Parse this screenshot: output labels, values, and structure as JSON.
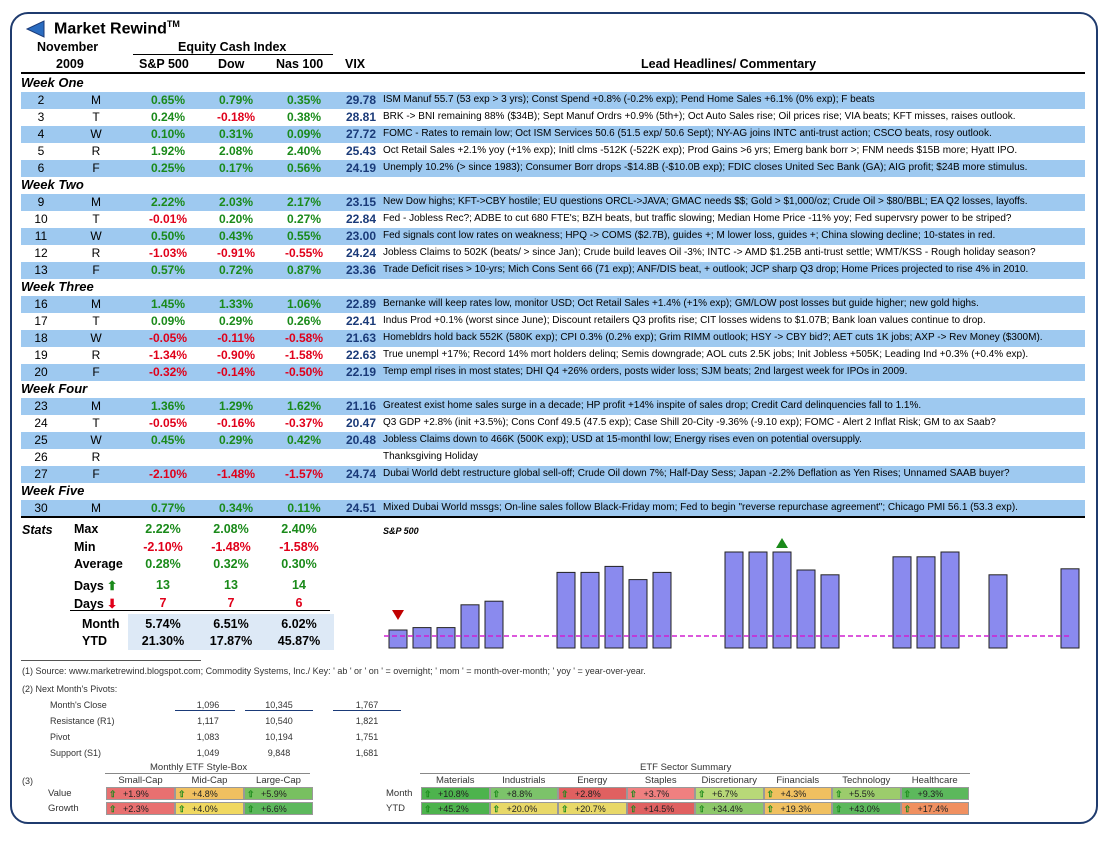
{
  "app": {
    "title": "Market Rewind",
    "tm": "TM"
  },
  "header": {
    "month": "November",
    "year": "2009",
    "group": "Equity Cash Index",
    "cols": [
      "S&P 500",
      "Dow",
      "Nas 100",
      "VIX",
      "Lead Headlines/ Commentary"
    ]
  },
  "weeks": [
    "Week One",
    "Week Two",
    "Week Three",
    "Week Four",
    "Week Five"
  ],
  "rows": [
    {
      "d": "2",
      "w": "M",
      "sp": "0.65%",
      "dow": "0.79%",
      "nas": "0.35%",
      "vix": "29.78",
      "h": "ISM Manuf 55.7 (53 exp > 3 yrs); Const Spend +0.8% (-0.2% exp); Pend Home Sales +6.1% (0% exp); F beats"
    },
    {
      "d": "3",
      "w": "T",
      "sp": "0.24%",
      "dow": "-0.18%",
      "nas": "0.38%",
      "vix": "28.81",
      "h": "BRK -> BNI remaining 88% ($34B); Sept Manuf Ordrs +0.9% (5th+); Oct Auto Sales rise; Oil prices rise; VIA beats; KFT misses, raises outlook."
    },
    {
      "d": "4",
      "w": "W",
      "sp": "0.10%",
      "dow": "0.31%",
      "nas": "0.09%",
      "vix": "27.72",
      "h": "FOMC - Rates to remain low; Oct ISM Services 50.6 (51.5 exp/ 50.6 Sept); NY-AG joins INTC anti-trust action; CSCO beats, rosy outlook."
    },
    {
      "d": "5",
      "w": "R",
      "sp": "1.92%",
      "dow": "2.08%",
      "nas": "2.40%",
      "vix": "25.43",
      "h": "Oct Retail Sales +2.1% yoy (+1% exp); Initl clms -512K (-522K exp); Prod Gains >6 yrs;  Emerg bank borr >; FNM needs $15B more; Hyatt IPO."
    },
    {
      "d": "6",
      "w": "F",
      "sp": "0.25%",
      "dow": "0.17%",
      "nas": "0.56%",
      "vix": "24.19",
      "h": "Unemply 10.2% (> since 1983); Consumer Borr drops -$14.8B (-$10.0B exp); FDIC closes United Sec Bank (GA); AIG profit; $24B more stimulus."
    },
    {
      "d": "9",
      "w": "M",
      "sp": "2.22%",
      "dow": "2.03%",
      "nas": "2.17%",
      "vix": "23.15",
      "h": "New Dow highs; KFT->CBY hostile; EU questions ORCL->JAVA; GMAC needs $$; Gold > $1,000/oz; Crude Oil > $80/BBL; EA Q2 losses, layoffs."
    },
    {
      "d": "10",
      "w": "T",
      "sp": "-0.01%",
      "dow": "0.20%",
      "nas": "0.27%",
      "vix": "22.84",
      "h": "Fed - Jobless Rec?; ADBE to cut 680 FTE's; BZH beats, but traffic slowing; Median Home Price -11% yoy; Fed supervsry power to be striped?"
    },
    {
      "d": "11",
      "w": "W",
      "sp": "0.50%",
      "dow": "0.43%",
      "nas": "0.55%",
      "vix": "23.00",
      "h": "Fed signals cont low rates on weakness; HPQ -> COMS ($2.7B), guides +; M lower loss, guides +; China slowing decline; 10-states in red."
    },
    {
      "d": "12",
      "w": "R",
      "sp": "-1.03%",
      "dow": "-0.91%",
      "nas": "-0.55%",
      "vix": "24.24",
      "h": "Jobless Claims to 502K (beats/ > since Jan); Crude build leaves Oil -3%; INTC -> AMD $1.25B anti-trust settle; WMT/KSS - Rough holiday season?"
    },
    {
      "d": "13",
      "w": "F",
      "sp": "0.57%",
      "dow": "0.72%",
      "nas": "0.87%",
      "vix": "23.36",
      "h": "Trade Deficit rises > 10-yrs; Mich Cons Sent 66 (71 exp); ANF/DIS beat, + outlook; JCP sharp Q3 drop; Home Prices projected to rise 4% in 2010."
    },
    {
      "d": "16",
      "w": "M",
      "sp": "1.45%",
      "dow": "1.33%",
      "nas": "1.06%",
      "vix": "22.89",
      "h": "Bernanke will keep rates low, monitor USD; Oct Retail Sales +1.4% (+1% exp); GM/LOW post losses but guide higher; new gold highs."
    },
    {
      "d": "17",
      "w": "T",
      "sp": "0.09%",
      "dow": "0.29%",
      "nas": "0.26%",
      "vix": "22.41",
      "h": "Indus Prod +0.1% (worst since June); Discount retailers Q3 profits rise; CIT losses widens to $1.07B; Bank loan values continue to drop."
    },
    {
      "d": "18",
      "w": "W",
      "sp": "-0.05%",
      "dow": "-0.11%",
      "nas": "-0.58%",
      "vix": "21.63",
      "h": "Homebldrs hold back 552K (580K exp); CPI 0.3% (0.2% exp); Grim RIMM outlook; HSY -> CBY bid?; AET cuts 1K jobs; AXP -> Rev Money ($300M)."
    },
    {
      "d": "19",
      "w": "R",
      "sp": "-1.34%",
      "dow": "-0.90%",
      "nas": "-1.58%",
      "vix": "22.63",
      "h": "True unempl +17%; Record 14% mort holders delinq; Semis downgrade; AOL cuts 2.5K jobs; Init Jobless +505K; Leading Ind +0.3% (+0.4% exp)."
    },
    {
      "d": "20",
      "w": "F",
      "sp": "-0.32%",
      "dow": "-0.14%",
      "nas": "-0.50%",
      "vix": "22.19",
      "h": "Temp empl rises in most states; DHI Q4 +26% orders, posts wider loss; SJM beats; 2nd largest week for IPOs in 2009."
    },
    {
      "d": "23",
      "w": "M",
      "sp": "1.36%",
      "dow": "1.29%",
      "nas": "1.62%",
      "vix": "21.16",
      "h": "Greatest exist home sales surge in a decade; HP profit +14% inspite of sales drop; Credit Card delinquencies fall to 1.1%."
    },
    {
      "d": "24",
      "w": "T",
      "sp": "-0.05%",
      "dow": "-0.16%",
      "nas": "-0.37%",
      "vix": "20.47",
      "h": "Q3 GDP +2.8% (init +3.5%); Cons Conf 49.5 (47.5 exp); Case Shill 20-City -9.36% (-9.10 exp); FOMC - Alert 2 Inflat Risk; GM to ax Saab?"
    },
    {
      "d": "25",
      "w": "W",
      "sp": "0.45%",
      "dow": "0.29%",
      "nas": "0.42%",
      "vix": "20.48",
      "h": "Jobless Claims down to 466K (500K exp);  USD at 15-monthl low; Energy rises even on potential oversupply."
    },
    {
      "d": "26",
      "w": "R",
      "sp": "",
      "dow": "",
      "nas": "",
      "vix": "",
      "h": "Thanksgiving Holiday"
    },
    {
      "d": "27",
      "w": "F",
      "sp": "-2.10%",
      "dow": "-1.48%",
      "nas": "-1.57%",
      "vix": "24.74",
      "h": "Dubai World debt restructure global sell-off; Crude Oil down 7%; Half-Day Sess; Japan -2.2% Deflation as Yen Rises; Unnamed SAAB buyer?"
    },
    {
      "d": "30",
      "w": "M",
      "sp": "0.77%",
      "dow": "0.34%",
      "nas": "0.11%",
      "vix": "24.51",
      "h": "Mixed Dubai World mssgs; On-line sales follow Black-Friday mom; Fed to begin \"reverse repurchase agreement\";  Chicago PMI 56.1 (53.3 exp)."
    }
  ],
  "stats": {
    "label": "Stats",
    "max": {
      "label": "Max",
      "sp": "2.22%",
      "dow": "2.08%",
      "nas": "2.40%"
    },
    "min": {
      "label": "Min",
      "sp": "-2.10%",
      "dow": "-1.48%",
      "nas": "-1.58%"
    },
    "avg": {
      "label": "Average",
      "sp": "0.28%",
      "dow": "0.32%",
      "nas": "0.30%"
    },
    "up": {
      "label": "Days",
      "sp": "13",
      "dow": "13",
      "nas": "14"
    },
    "down": {
      "label": "Days",
      "sp": "7",
      "dow": "7",
      "nas": "6"
    },
    "month": {
      "label": "Month",
      "sp": "5.74%",
      "dow": "6.51%",
      "nas": "6.02%"
    },
    "ytd": {
      "label": "YTD",
      "sp": "21.30%",
      "dow": "17.87%",
      "nas": "45.87%"
    }
  },
  "chart_data": {
    "type": "bar",
    "title": "S&P 500",
    "categories": [
      "2",
      "3",
      "4",
      "5",
      "6",
      "9",
      "10",
      "11",
      "12",
      "13",
      "16",
      "17",
      "18",
      "19",
      "20",
      "23",
      "24",
      "25",
      "26",
      "27",
      "30"
    ],
    "values": [
      1045,
      1047,
      1047,
      1066,
      1069,
      1093,
      1093,
      1098,
      1087,
      1093,
      1110,
      1110,
      1110,
      1095,
      1091,
      1106,
      1106,
      1110,
      null,
      1091,
      1096
    ],
    "ylim": [
      1030,
      1120
    ],
    "reference_line": {
      "label": "month open",
      "value": 1040
    },
    "markers": {
      "low_day": "2",
      "high_day": "18"
    }
  },
  "footnotes": {
    "n1": "(1)  Source:  www.marketrewind.blogspot.com; Commodity Systems, Inc./ Key:  ' ab ' or ' on ' = overnight; ' mom ' = month-over-month; ' yoy ' = year-over-year.",
    "n2": "(2)  Next Month's Pivots:",
    "n3": "(3)"
  },
  "pivots": {
    "rows": [
      {
        "label": "Month's Close",
        "sp": "1,096",
        "dow": "10,345",
        "nas": "1,767"
      },
      {
        "label": "Resistance (R1)",
        "sp": "1,117",
        "dow": "10,540",
        "nas": "1,821"
      },
      {
        "label": "Pivot",
        "sp": "1,083",
        "dow": "10,194",
        "nas": "1,751"
      },
      {
        "label": "Support (S1)",
        "sp": "1,049",
        "dow": "9,848",
        "nas": "1,681"
      }
    ]
  },
  "stylebox": {
    "title": "Monthly ETF  Style-Box",
    "cols": [
      "Small-Cap",
      "Mid-Cap",
      "Large-Cap"
    ],
    "rows": [
      {
        "label": "Value",
        "vals": [
          "+1.9%",
          "+4.8%",
          "+5.9%"
        ],
        "colors": [
          "#e87070",
          "#f0c060",
          "#78c060"
        ]
      },
      {
        "label": "Growth",
        "vals": [
          "+2.3%",
          "+4.0%",
          "+6.6%"
        ],
        "colors": [
          "#e87070",
          "#f0d860",
          "#5cb85c"
        ]
      }
    ]
  },
  "sectors": {
    "title": "ETF Sector Summary",
    "cols": [
      "Materials",
      "Industrials",
      "Energy",
      "Staples",
      "Discretionary",
      "Financials",
      "Technology",
      "Healthcare"
    ],
    "rows": [
      {
        "label": "Month",
        "vals": [
          "+10.8%",
          "+8.8%",
          "+2.8%",
          "+3.7%",
          "+6.7%",
          "+4.3%",
          "+5.5%",
          "+9.3%"
        ],
        "colors": [
          "#4db34d",
          "#7cc36a",
          "#e06060",
          "#f08080",
          "#b8d878",
          "#f0c060",
          "#9ccc6c",
          "#5cb85c"
        ]
      },
      {
        "label": "YTD",
        "vals": [
          "+45.2%",
          "+20.0%",
          "+20.7%",
          "+14.5%",
          "+34.4%",
          "+19.3%",
          "+43.0%",
          "+17.4%"
        ],
        "colors": [
          "#4db34d",
          "#e8d868",
          "#e8d868",
          "#e06060",
          "#8cc86a",
          "#f0c060",
          "#5cb85c",
          "#f09060"
        ]
      }
    ]
  }
}
